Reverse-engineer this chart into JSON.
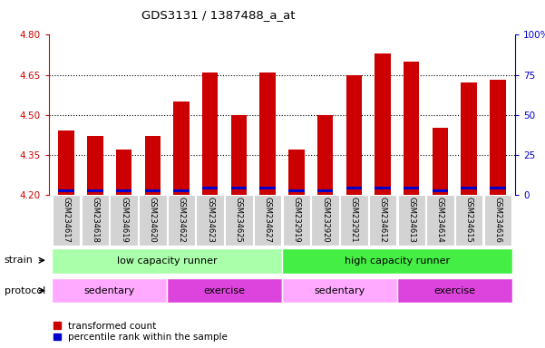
{
  "title": "GDS3131 / 1387488_a_at",
  "samples": [
    "GSM234617",
    "GSM234618",
    "GSM234619",
    "GSM234620",
    "GSM234622",
    "GSM234623",
    "GSM234625",
    "GSM234627",
    "GSM232919",
    "GSM232920",
    "GSM232921",
    "GSM234612",
    "GSM234613",
    "GSM234614",
    "GSM234615",
    "GSM234616"
  ],
  "red_values": [
    4.44,
    4.42,
    4.37,
    4.42,
    4.55,
    4.66,
    4.5,
    4.66,
    4.37,
    4.5,
    4.65,
    4.73,
    4.7,
    4.45,
    4.62,
    4.63
  ],
  "blue_heights": [
    0.008,
    0.008,
    0.008,
    0.008,
    0.008,
    0.008,
    0.008,
    0.008,
    0.008,
    0.008,
    0.008,
    0.008,
    0.008,
    0.008,
    0.008,
    0.008
  ],
  "blue_bottoms": [
    4.212,
    4.212,
    4.212,
    4.212,
    4.212,
    4.222,
    4.222,
    4.222,
    4.212,
    4.212,
    4.222,
    4.222,
    4.222,
    4.212,
    4.222,
    4.222
  ],
  "base": 4.2,
  "ylim_left": [
    4.2,
    4.8
  ],
  "ylim_right": [
    0,
    100
  ],
  "yticks_left": [
    4.2,
    4.35,
    4.5,
    4.65,
    4.8
  ],
  "yticks_right": [
    0,
    25,
    50,
    75,
    100
  ],
  "bar_color_red": "#cc0000",
  "bar_color_blue": "#0000cc",
  "bar_width": 0.55,
  "strain_groups": [
    {
      "label": "low capacity runner",
      "start": 0,
      "end": 8,
      "color": "#aaffaa"
    },
    {
      "label": "high capacity runner",
      "start": 8,
      "end": 16,
      "color": "#44ee44"
    }
  ],
  "protocol_groups": [
    {
      "label": "sedentary",
      "start": 0,
      "end": 4,
      "color": "#ffaaff"
    },
    {
      "label": "exercise",
      "start": 4,
      "end": 8,
      "color": "#dd44dd"
    },
    {
      "label": "sedentary",
      "start": 8,
      "end": 12,
      "color": "#ffaaff"
    },
    {
      "label": "exercise",
      "start": 12,
      "end": 16,
      "color": "#dd44dd"
    }
  ],
  "legend_red_label": "transformed count",
  "legend_blue_label": "percentile rank within the sample",
  "left_axis_color": "#cc0000",
  "right_axis_color": "#0000cc",
  "dotted_lines": [
    4.35,
    4.5,
    4.65
  ],
  "fig_width": 6.01,
  "fig_height": 3.84,
  "dpi": 100
}
